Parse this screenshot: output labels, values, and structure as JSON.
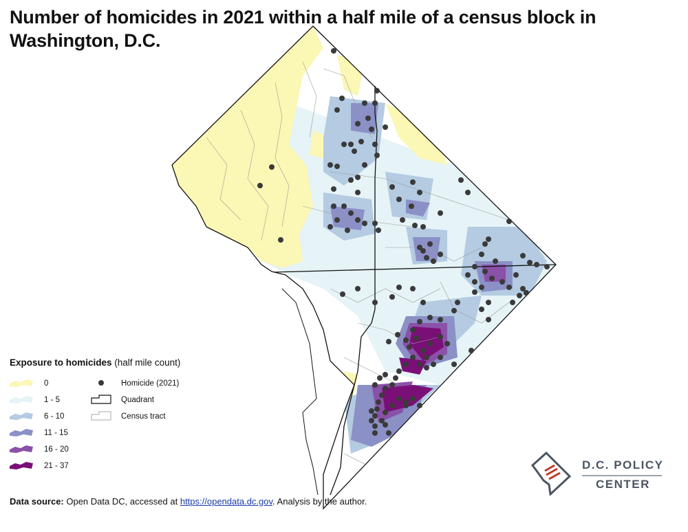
{
  "title": "Number of homicides in 2021 within a half mile of a census block in Washington, D.C.",
  "legend": {
    "title_bold": "Exposure to homicides",
    "title_rest": " (half mile count)",
    "classes": [
      {
        "label": "0",
        "color": "#fbf7b5"
      },
      {
        "label": "1 - 5",
        "color": "#e6f3f7"
      },
      {
        "label": "6 - 10",
        "color": "#b4cbe2"
      },
      {
        "label": "11 - 15",
        "color": "#8b90c6"
      },
      {
        "label": "16 - 20",
        "color": "#8a51a8"
      },
      {
        "label": "21 - 37",
        "color": "#7a0f77"
      }
    ],
    "symbols": [
      {
        "label": "Homicide (2021)",
        "icon": "dot-icon"
      },
      {
        "label": "Quadrant",
        "icon": "quadrant-outline-icon"
      },
      {
        "label": "Census tract",
        "icon": "census-tract-outline-icon"
      }
    ]
  },
  "source": {
    "label": "Data source:",
    "text_before": " Open Data DC, accessed at ",
    "link_text": "https://opendata.dc.gov",
    "text_after": ". Analysis by the author."
  },
  "logo": {
    "line1": "D.C. POLICY",
    "line2": "CENTER",
    "colors": {
      "text": "#4b5563",
      "mark": "#c0392b"
    }
  },
  "map": {
    "homicide_dot_color": "#3a3a3a",
    "quadrant_line_color": "#111111",
    "tract_line_color": "#9a9a9a"
  }
}
